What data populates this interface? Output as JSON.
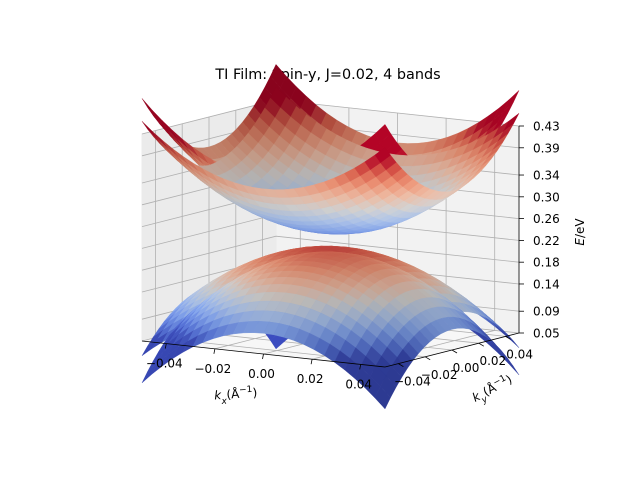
{
  "chart_data": {
    "type": "surface",
    "title": "TI Film: Spin-y, J=0.02, 4 bands",
    "xlabel": "k_x(Å⁻¹)",
    "ylabel": "k_y(Å⁻¹)",
    "zlabel": "E/eV",
    "x_ticks": [
      "−0.04",
      "−0.02",
      "0.00",
      "0.02",
      "0.04"
    ],
    "y_ticks": [
      "−0.04",
      "−0.02",
      "0.00",
      "0.02",
      "0.04"
    ],
    "z_ticks": [
      "0.05",
      "0.09",
      "0.14",
      "0.18",
      "0.22",
      "0.26",
      "0.30",
      "0.34",
      "0.39",
      "0.43"
    ],
    "x_range": [
      -0.05,
      0.05
    ],
    "y_range": [
      -0.05,
      0.05
    ],
    "z_range": [
      0.05,
      0.43
    ],
    "colormap": "coolwarm",
    "grid": true,
    "bands": 4
  }
}
